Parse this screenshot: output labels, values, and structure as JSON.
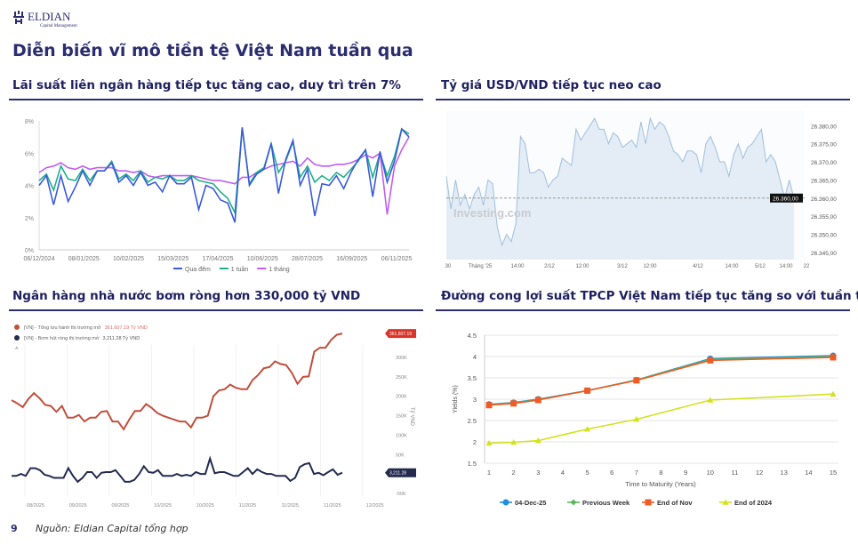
{
  "logo": {
    "name": "ELDIAN",
    "tagline": "Capital Management"
  },
  "title": "Diễn biến vĩ mô tiền tệ Việt Nam tuần qua",
  "sections": [
    {
      "heading": "Lãi suất liên ngân hàng tiếp tục tăng cao, duy trì trên 7%"
    },
    {
      "heading": "Tỷ giá USD/VND tiếp tục neo cao"
    },
    {
      "heading": "Ngân hàng nhà nước bơm ròng hơn 330,000 tỷ VND"
    },
    {
      "heading": "Đường cong lợi suất TPCP Việt Nam tiếp tục tăng so với tuần trước"
    }
  ],
  "footer": {
    "page": "9",
    "source": "Nguồn: Eldian Capital tổng hợp"
  },
  "chart_data": [
    {
      "type": "line",
      "ylim": [
        0,
        8
      ],
      "yticks": [
        "0%",
        "2%",
        "4%",
        "6%",
        "8%"
      ],
      "yunit": "%",
      "xticks": [
        "06/12/2024",
        "08/01/2025",
        "10/02/2025",
        "15/03/2025",
        "17/04/2025",
        "10/06/2025",
        "28/07/2025",
        "16/09/2025",
        "06/11/2025"
      ],
      "legend": "bottom",
      "grid": false,
      "series": [
        {
          "name": "Qua đêm",
          "color": "#3b5bdb",
          "values": [
            4.0,
            4.6,
            2.8,
            4.6,
            3.0,
            3.9,
            4.9,
            4.0,
            4.9,
            4.9,
            5.4,
            4.2,
            4.6,
            4.0,
            4.8,
            4.0,
            4.2,
            3.6,
            4.6,
            4.1,
            4.1,
            4.5,
            2.5,
            4.0,
            3.8,
            3.1,
            2.9,
            1.7,
            7.6,
            4.0,
            4.7,
            5.0,
            6.6,
            3.5,
            5.6,
            6.8,
            4.0,
            5.0,
            2.1,
            4.1,
            4.0,
            4.6,
            3.8,
            4.8,
            5.6,
            6.2,
            3.3,
            6.1,
            4.2,
            5.5,
            7.5,
            7.0
          ]
        },
        {
          "name": "1 tuần",
          "color": "#20b08a",
          "values": [
            4.3,
            4.7,
            3.7,
            5.2,
            4.4,
            4.3,
            5.0,
            4.3,
            4.9,
            4.9,
            5.5,
            4.4,
            4.7,
            4.3,
            4.9,
            4.2,
            4.5,
            4.4,
            4.6,
            4.3,
            4.3,
            4.6,
            4.3,
            4.2,
            4.1,
            3.6,
            3.2,
            2.3,
            7.6,
            4.1,
            4.8,
            5.1,
            6.6,
            4.8,
            5.5,
            6.7,
            4.5,
            5.2,
            4.2,
            4.6,
            4.3,
            4.8,
            4.5,
            5.0,
            5.5,
            6.2,
            4.5,
            6.0,
            4.6,
            5.8,
            7.5,
            7.2
          ]
        },
        {
          "name": "1 tháng",
          "color": "#c05ef0",
          "values": [
            4.8,
            5.1,
            5.2,
            5.4,
            5.1,
            5.0,
            5.2,
            5.0,
            5.1,
            5.1,
            5.1,
            4.9,
            4.9,
            4.8,
            4.9,
            4.6,
            4.5,
            4.6,
            4.6,
            4.6,
            4.6,
            4.6,
            4.5,
            4.4,
            4.3,
            4.3,
            4.2,
            4.1,
            4.5,
            4.5,
            4.8,
            5.0,
            5.2,
            5.3,
            5.4,
            5.5,
            5.2,
            5.7,
            5.3,
            5.2,
            5.2,
            5.3,
            5.3,
            5.4,
            5.6,
            5.9,
            5.7,
            6.0,
            2.2,
            5.2,
            6.2,
            7.0
          ]
        }
      ]
    },
    {
      "type": "area",
      "ylim": [
        26343,
        26384
      ],
      "yticks": [
        "26.345,00",
        "26.350,00",
        "26.355,00",
        "26.360,00",
        "26.365,00",
        "26.370,00",
        "26.375,00",
        "26.380,00"
      ],
      "xticks": [
        "30",
        "Tháng '25",
        "14:00",
        "2/12",
        "12:00",
        "3/12",
        "12:00",
        "4/12",
        "14:00",
        "5/12",
        "14:00",
        "22"
      ],
      "last_value": 26360,
      "last_label": "26.360,00",
      "watermark": "Investing.com",
      "color": "#9fbfdc",
      "fill": "#e4edf6",
      "series": [
        {
          "values": [
            26366,
            26357,
            26365,
            26358,
            26361,
            26357,
            26361,
            26363,
            26358,
            26365,
            26364,
            26352,
            26347,
            26350,
            26348,
            26353,
            26377,
            26375,
            26367,
            26367,
            26368,
            26367,
            26363,
            26365,
            26366,
            26371,
            26370,
            26369,
            26379,
            26376,
            26378,
            26380,
            26382,
            26379,
            26379,
            26375,
            26378,
            26377,
            26374,
            26375,
            26376,
            26374,
            26381,
            26375,
            26382,
            26379,
            26381,
            26380,
            26377,
            26373,
            26372,
            26370,
            26373,
            26373,
            26372,
            26367,
            26375,
            26377,
            26374,
            26370,
            26370,
            26366,
            26372,
            26375,
            26371,
            26374,
            26375,
            26377,
            26379,
            26370,
            26372,
            26370,
            26365,
            26360,
            26365,
            26360
          ]
        }
      ]
    },
    {
      "type": "line",
      "ylim": [
        -50,
        361.6
      ],
      "yticks": [
        "-50K",
        "50K",
        "100K",
        "150K",
        "200K",
        "250K",
        "300K"
      ],
      "ylabel": "Tỷ VND",
      "xticks": [
        "08/2025",
        "09/2025",
        "09/2025",
        "10/2025",
        "10/2025",
        "11/2025",
        "11/2025",
        "11/2025",
        "12/2025"
      ],
      "legend": "top-left",
      "series": [
        {
          "name": "[VN] - Tổng lưu hành thị trường mở",
          "last_text": "361,607.19 Tỷ VND",
          "last_label": "361,607.19",
          "color": "#c0503e",
          "values": [
            190,
            182,
            172,
            193,
            208,
            195,
            178,
            175,
            160,
            175,
            145,
            145,
            152,
            135,
            145,
            145,
            160,
            162,
            135,
            135,
            115,
            140,
            162,
            162,
            180,
            170,
            157,
            150,
            145,
            140,
            135,
            135,
            120,
            145,
            145,
            150,
            200,
            215,
            218,
            230,
            222,
            218,
            218,
            242,
            255,
            272,
            275,
            290,
            283,
            280,
            260,
            232,
            250,
            251,
            315,
            325,
            325,
            345,
            358,
            361.6
          ]
        },
        {
          "name": "[VN] - Bơm hút ròng thị trường mở",
          "last_text": "3,211.28 Tỷ VND",
          "last_label": "3,211.28",
          "color": "#232a4e",
          "values": [
            -5,
            -5,
            0,
            -5,
            15,
            15,
            10,
            -2,
            -5,
            -10,
            -10,
            -10,
            15,
            -5,
            -20,
            -10,
            5,
            5,
            -10,
            3,
            5,
            5,
            10,
            -5,
            -20,
            -20,
            -15,
            0,
            20,
            5,
            3,
            10,
            -5,
            -5,
            -5,
            0,
            -5,
            -2,
            -5,
            5,
            0,
            0,
            40,
            2,
            5,
            5,
            0,
            -5,
            -5,
            5,
            15,
            0,
            12,
            5,
            0,
            0,
            -5,
            -5,
            -5,
            -18,
            -10,
            18,
            25,
            28,
            0,
            3,
            -3,
            5,
            12,
            -2,
            3.2
          ]
        }
      ]
    },
    {
      "type": "line",
      "ylim": [
        1.5,
        4.5
      ],
      "yticks": [
        "1.5",
        "2",
        "2.5",
        "3",
        "3.5",
        "4",
        "4.5"
      ],
      "xlabel": "Time to Maturity (Years)",
      "ylabel": "Yields (%)",
      "xlim": [
        1,
        15
      ],
      "xticks": [
        "1",
        "2",
        "3",
        "4",
        "5",
        "6",
        "7",
        "8",
        "9",
        "10",
        "11",
        "12",
        "13",
        "14",
        "15"
      ],
      "grid": true,
      "legend": "bottom",
      "x": [
        1,
        2,
        3,
        5,
        7,
        10,
        15
      ],
      "series": [
        {
          "name": "04-Dec-25",
          "color": "#1f8fdd",
          "marker": "circle",
          "values": [
            2.88,
            2.92,
            3.0,
            3.2,
            3.45,
            3.95,
            4.02
          ]
        },
        {
          "name": "Previous Week",
          "color": "#5cb85c",
          "marker": "diamond",
          "values": [
            2.87,
            2.91,
            2.99,
            3.2,
            3.45,
            3.93,
            4.0
          ]
        },
        {
          "name": "End of Nov",
          "color": "#f05a24",
          "marker": "square",
          "values": [
            2.86,
            2.9,
            2.98,
            3.2,
            3.44,
            3.91,
            3.98
          ]
        },
        {
          "name": "End of 2024",
          "color": "#d4e21b",
          "marker": "triangle",
          "values": [
            1.97,
            1.99,
            2.03,
            2.3,
            2.53,
            2.98,
            3.12
          ]
        }
      ]
    }
  ]
}
